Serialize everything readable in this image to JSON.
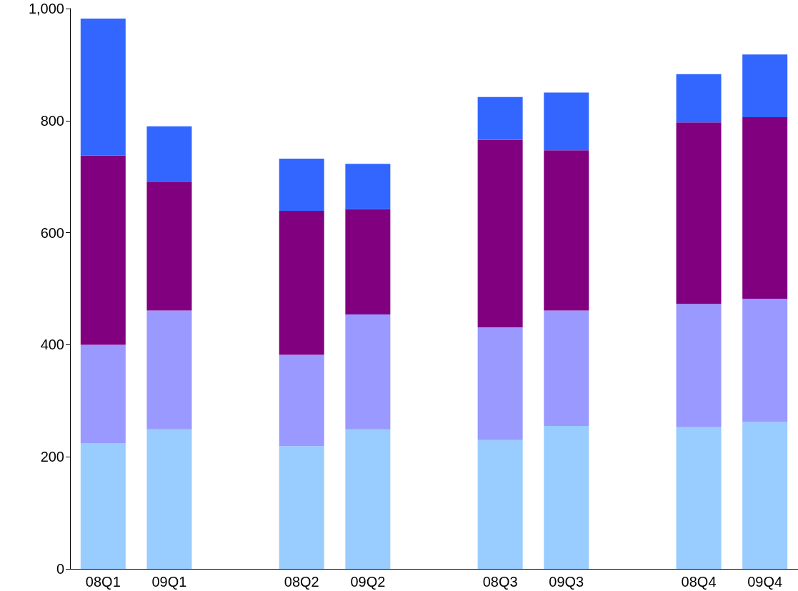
{
  "chart_data": {
    "type": "bar",
    "stacked": true,
    "categories": [
      "08Q1",
      "09Q1",
      null,
      "08Q2",
      "09Q2",
      null,
      "08Q3",
      "09Q3",
      null,
      "08Q4",
      "09Q4"
    ],
    "series": [
      {
        "color": "#99ccff",
        "values": [
          224,
          249,
          null,
          219,
          249,
          null,
          230,
          255,
          null,
          253,
          262
        ]
      },
      {
        "color": "#9999ff",
        "values": [
          176,
          212,
          null,
          163,
          205,
          null,
          201,
          206,
          null,
          220,
          220
        ]
      },
      {
        "color": "#800080",
        "values": [
          338,
          230,
          null,
          257,
          188,
          null,
          335,
          286,
          null,
          324,
          324
        ]
      },
      {
        "color": "#3366ff",
        "values": [
          244,
          99,
          null,
          93,
          81,
          null,
          76,
          103,
          null,
          86,
          112
        ]
      }
    ],
    "ylim": [
      0,
      1000
    ],
    "yticks": [
      0,
      200,
      400,
      600,
      800,
      {
        "value": 1000,
        "label": "1,000"
      }
    ],
    "grid": false
  }
}
